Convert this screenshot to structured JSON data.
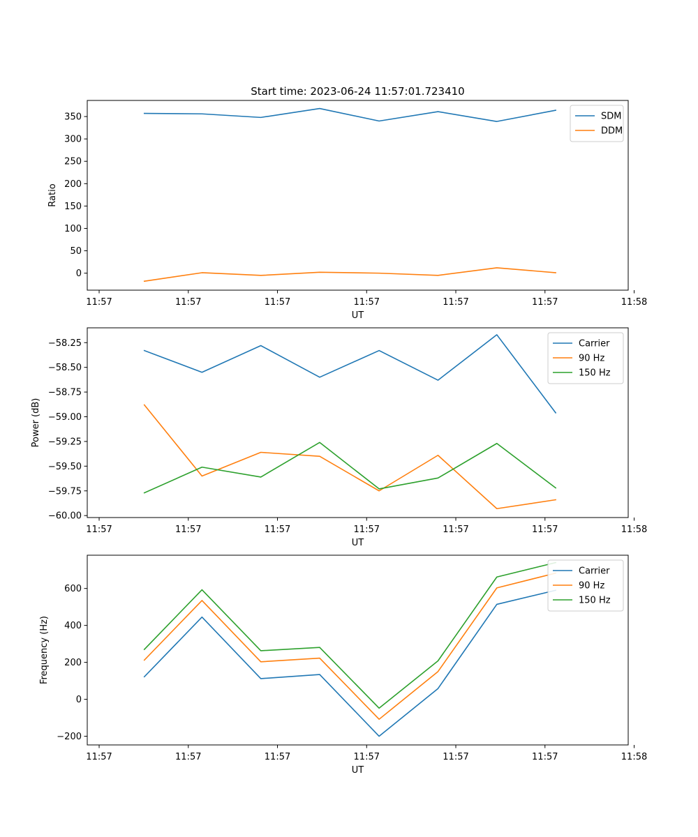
{
  "figure": {
    "title": "Start time: 2023-06-24 11:57:01.723410"
  },
  "colors": {
    "blue": "#1f77b4",
    "orange": "#ff7f0e",
    "green": "#2ca02c"
  },
  "chart_data": [
    {
      "type": "line",
      "title": "Start time: 2023-06-24 11:57:01.723410",
      "xlabel": "UT",
      "ylabel": "Ratio",
      "xlim": [
        0.7,
        9.8
      ],
      "ylim": [
        -38,
        386
      ],
      "x_ticks": [
        0.9,
        2.4,
        3.9,
        5.4,
        6.9,
        8.4,
        9.9
      ],
      "x_tick_labels": [
        "11:57",
        "11:57",
        "11:57",
        "11:57",
        "11:57",
        "11:57",
        "11:58"
      ],
      "y_ticks": [
        0,
        50,
        100,
        150,
        200,
        250,
        300,
        350
      ],
      "y_tick_labels": [
        "0",
        "50",
        "100",
        "150",
        "200",
        "250",
        "300",
        "350"
      ],
      "legend_position": "upper right",
      "x": [
        1.66,
        2.63,
        3.62,
        4.61,
        5.61,
        6.6,
        7.59,
        8.58
      ],
      "series": [
        {
          "name": "SDM",
          "color": "#1f77b4",
          "values": [
            357,
            356,
            348,
            368,
            340,
            361,
            339,
            364
          ]
        },
        {
          "name": "DDM",
          "color": "#ff7f0e",
          "values": [
            -18,
            1,
            -5,
            2,
            0,
            -5,
            12,
            1
          ]
        }
      ]
    },
    {
      "type": "line",
      "title": "",
      "xlabel": "UT",
      "ylabel": "Power (dB)",
      "xlim": [
        0.7,
        9.8
      ],
      "ylim": [
        -60.02,
        -58.1
      ],
      "x_ticks": [
        0.9,
        2.4,
        3.9,
        5.4,
        6.9,
        8.4,
        9.9
      ],
      "x_tick_labels": [
        "11:57",
        "11:57",
        "11:57",
        "11:57",
        "11:57",
        "11:57",
        "11:58"
      ],
      "y_ticks": [
        -60.0,
        -59.75,
        -59.5,
        -59.25,
        -59.0,
        -58.75,
        -58.5,
        -58.25
      ],
      "y_tick_labels": [
        "−60.00",
        "−59.75",
        "−59.50",
        "−59.25",
        "−59.00",
        "−58.75",
        "−58.50",
        "−58.25"
      ],
      "legend_position": "upper right",
      "x": [
        1.66,
        2.63,
        3.62,
        4.61,
        5.61,
        6.6,
        7.59,
        8.58
      ],
      "series": [
        {
          "name": "Carrier",
          "color": "#1f77b4",
          "values": [
            -58.33,
            -58.55,
            -58.28,
            -58.6,
            -58.33,
            -58.63,
            -58.17,
            -58.96
          ]
        },
        {
          "name": "90 Hz",
          "color": "#ff7f0e",
          "values": [
            -58.88,
            -59.6,
            -59.36,
            -59.4,
            -59.75,
            -59.39,
            -59.93,
            -59.84
          ]
        },
        {
          "name": "150 Hz",
          "color": "#2ca02c",
          "values": [
            -59.77,
            -59.51,
            -59.61,
            -59.26,
            -59.73,
            -59.62,
            -59.27,
            -59.72
          ]
        }
      ]
    },
    {
      "type": "line",
      "title": "",
      "xlabel": "UT",
      "ylabel": "Frequency (Hz)",
      "xlim": [
        0.7,
        9.8
      ],
      "ylim": [
        -247,
        780
      ],
      "x_ticks": [
        0.9,
        2.4,
        3.9,
        5.4,
        6.9,
        8.4,
        9.9
      ],
      "x_tick_labels": [
        "11:57",
        "11:57",
        "11:57",
        "11:57",
        "11:57",
        "11:57",
        "11:58"
      ],
      "y_ticks": [
        -200,
        0,
        200,
        400,
        600
      ],
      "y_tick_labels": [
        "−200",
        "0",
        "200",
        "400",
        "600"
      ],
      "legend_position": "upper right",
      "x": [
        1.66,
        2.63,
        3.62,
        4.61,
        5.61,
        6.6,
        7.59,
        8.58
      ],
      "series": [
        {
          "name": "Carrier",
          "color": "#1f77b4",
          "values": [
            122,
            445,
            112,
            134,
            -200,
            58,
            514,
            590
          ]
        },
        {
          "name": "90 Hz",
          "color": "#ff7f0e",
          "values": [
            212,
            535,
            203,
            223,
            -108,
            150,
            603,
            683
          ]
        },
        {
          "name": "150 Hz",
          "color": "#2ca02c",
          "values": [
            270,
            593,
            263,
            281,
            -48,
            208,
            662,
            740
          ]
        }
      ]
    }
  ]
}
